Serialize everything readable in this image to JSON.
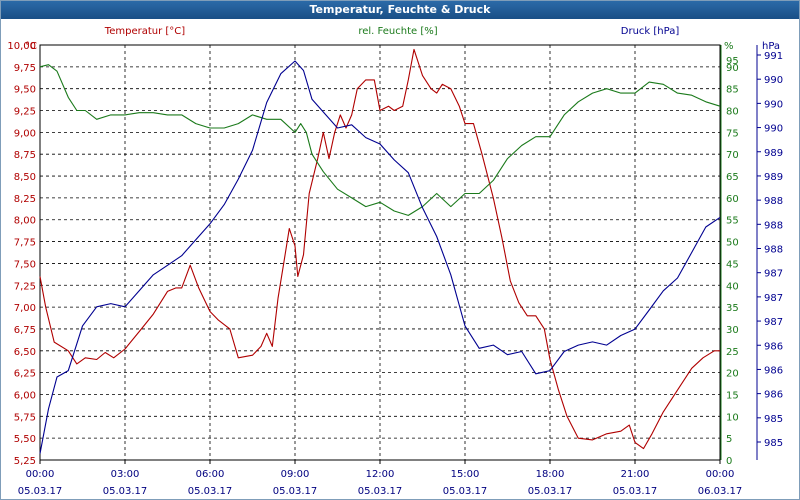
{
  "window": {
    "title": "Temperatur, Feuchte & Druck"
  },
  "colors": {
    "temperature": "#b00000",
    "humidity": "#1b7a1b",
    "pressure": "#000090",
    "grid": "#000000",
    "title_bg": "#1a4f86"
  },
  "chart_data": {
    "type": "line",
    "title": "Temperatur, Feuchte & Druck",
    "grid": true,
    "legend_placement": "top",
    "x": {
      "range": [
        "05.03.17 00:00",
        "06.03.17 00:00"
      ],
      "ticks": [
        {
          "time": "00:00",
          "date": "05.03.17"
        },
        {
          "time": "03:00",
          "date": "05.03.17"
        },
        {
          "time": "06:00",
          "date": "05.03.17"
        },
        {
          "time": "09:00",
          "date": "05.03.17"
        },
        {
          "time": "12:00",
          "date": "05.03.17"
        },
        {
          "time": "15:00",
          "date": "05.03.17"
        },
        {
          "time": "18:00",
          "date": "05.03.17"
        },
        {
          "time": "21:00",
          "date": "05.03.17"
        },
        {
          "time": "00:00",
          "date": "06.03.17"
        }
      ]
    },
    "axes": {
      "temperature": {
        "label": "Temperatur [°C]",
        "unit": "°C",
        "ylim": [
          5.25,
          10.0
        ],
        "tick_labels": [
          "10,00",
          "9,75",
          "9,50",
          "9,25",
          "9,00",
          "8,75",
          "8,50",
          "8,25",
          "8,00",
          "7,75",
          "7,50",
          "7,25",
          "7,00",
          "6,75",
          "6,50",
          "6,25",
          "6,00",
          "5,75",
          "5,50",
          "5,25"
        ]
      },
      "humidity": {
        "label": "rel. Feuchte [%]",
        "unit": "%",
        "ylim": [
          0,
          95
        ],
        "tick_labels": [
          "95",
          "90",
          "85",
          "80",
          "75",
          "70",
          "65",
          "60",
          "55",
          "50",
          "45",
          "40",
          "35",
          "30",
          "25",
          "20",
          "15",
          "10",
          "5",
          "0"
        ]
      },
      "pressure": {
        "label": "Druck [hPa]",
        "unit": "hPa",
        "ylim": [
          984.5,
          991.0
        ],
        "tick_labels": [
          "991",
          "990",
          "990",
          "990",
          "989",
          "989",
          "988",
          "988",
          "988",
          "987",
          "987",
          "987",
          "986",
          "986",
          "986",
          "985",
          "985"
        ]
      }
    },
    "series": [
      {
        "name": "Temperatur [°C]",
        "axis": "temperature",
        "points": [
          [
            0,
            7.35
          ],
          [
            0.2,
            7.0
          ],
          [
            0.5,
            6.6
          ],
          [
            1.0,
            6.5
          ],
          [
            1.3,
            6.35
          ],
          [
            1.6,
            6.42
          ],
          [
            2.0,
            6.4
          ],
          [
            2.3,
            6.48
          ],
          [
            2.6,
            6.42
          ],
          [
            3.0,
            6.52
          ],
          [
            3.5,
            6.72
          ],
          [
            4.0,
            6.92
          ],
          [
            4.5,
            7.18
          ],
          [
            4.8,
            7.22
          ],
          [
            5.0,
            7.22
          ],
          [
            5.3,
            7.48
          ],
          [
            5.6,
            7.22
          ],
          [
            6.0,
            6.95
          ],
          [
            6.3,
            6.85
          ],
          [
            6.7,
            6.75
          ],
          [
            7.0,
            6.42
          ],
          [
            7.5,
            6.45
          ],
          [
            7.8,
            6.55
          ],
          [
            8.0,
            6.7
          ],
          [
            8.2,
            6.55
          ],
          [
            8.4,
            7.1
          ],
          [
            8.6,
            7.5
          ],
          [
            8.8,
            7.9
          ],
          [
            9.0,
            7.7
          ],
          [
            9.1,
            7.35
          ],
          [
            9.3,
            7.6
          ],
          [
            9.5,
            8.3
          ],
          [
            9.8,
            8.7
          ],
          [
            10.0,
            9.0
          ],
          [
            10.2,
            8.7
          ],
          [
            10.4,
            9.0
          ],
          [
            10.6,
            9.2
          ],
          [
            10.8,
            9.05
          ],
          [
            11.0,
            9.2
          ],
          [
            11.2,
            9.5
          ],
          [
            11.5,
            9.6
          ],
          [
            11.8,
            9.6
          ],
          [
            12.0,
            9.25
          ],
          [
            12.3,
            9.3
          ],
          [
            12.5,
            9.25
          ],
          [
            12.8,
            9.3
          ],
          [
            13.0,
            9.6
          ],
          [
            13.2,
            9.95
          ],
          [
            13.5,
            9.65
          ],
          [
            13.8,
            9.5
          ],
          [
            14.0,
            9.45
          ],
          [
            14.2,
            9.55
          ],
          [
            14.5,
            9.5
          ],
          [
            14.8,
            9.3
          ],
          [
            15.0,
            9.1
          ],
          [
            15.3,
            9.1
          ],
          [
            15.6,
            8.75
          ],
          [
            16.0,
            8.25
          ],
          [
            16.3,
            7.8
          ],
          [
            16.6,
            7.3
          ],
          [
            16.9,
            7.05
          ],
          [
            17.2,
            6.9
          ],
          [
            17.5,
            6.9
          ],
          [
            17.8,
            6.75
          ],
          [
            18.0,
            6.4
          ],
          [
            18.3,
            6.05
          ],
          [
            18.6,
            5.75
          ],
          [
            19.0,
            5.5
          ],
          [
            19.5,
            5.48
          ],
          [
            20.0,
            5.55
          ],
          [
            20.5,
            5.58
          ],
          [
            20.8,
            5.65
          ],
          [
            21.0,
            5.45
          ],
          [
            21.3,
            5.38
          ],
          [
            21.6,
            5.55
          ],
          [
            22.0,
            5.8
          ],
          [
            22.5,
            6.05
          ],
          [
            23.0,
            6.3
          ],
          [
            23.4,
            6.42
          ],
          [
            23.8,
            6.5
          ],
          [
            24.0,
            6.5
          ]
        ]
      },
      {
        "name": "rel. Feuchte [%]",
        "axis": "humidity",
        "points": [
          [
            0,
            90
          ],
          [
            0.3,
            90.5
          ],
          [
            0.6,
            89
          ],
          [
            1.0,
            83
          ],
          [
            1.3,
            80
          ],
          [
            1.6,
            80
          ],
          [
            2.0,
            78
          ],
          [
            2.5,
            79
          ],
          [
            3.0,
            79
          ],
          [
            3.5,
            79.5
          ],
          [
            4.0,
            79.5
          ],
          [
            4.5,
            79
          ],
          [
            5.0,
            79
          ],
          [
            5.5,
            77
          ],
          [
            6.0,
            76
          ],
          [
            6.5,
            76
          ],
          [
            7.0,
            77
          ],
          [
            7.5,
            79
          ],
          [
            8.0,
            78
          ],
          [
            8.5,
            78
          ],
          [
            9.0,
            75
          ],
          [
            9.2,
            77
          ],
          [
            9.4,
            75
          ],
          [
            9.6,
            70
          ],
          [
            10.0,
            66
          ],
          [
            10.5,
            62
          ],
          [
            11.0,
            60
          ],
          [
            11.5,
            58
          ],
          [
            12.0,
            59
          ],
          [
            12.5,
            57
          ],
          [
            13.0,
            56
          ],
          [
            13.5,
            58
          ],
          [
            14.0,
            61
          ],
          [
            14.5,
            58
          ],
          [
            15.0,
            61
          ],
          [
            15.5,
            61
          ],
          [
            16.0,
            64
          ],
          [
            16.5,
            69
          ],
          [
            17.0,
            72
          ],
          [
            17.5,
            74
          ],
          [
            18.0,
            74
          ],
          [
            18.5,
            79
          ],
          [
            19.0,
            82
          ],
          [
            19.5,
            84
          ],
          [
            20.0,
            85
          ],
          [
            20.5,
            84
          ],
          [
            21.0,
            84
          ],
          [
            21.5,
            86.5
          ],
          [
            22.0,
            86
          ],
          [
            22.5,
            84
          ],
          [
            23.0,
            83.5
          ],
          [
            23.5,
            82
          ],
          [
            24.0,
            81
          ]
        ]
      },
      {
        "name": "Druck [hPa]",
        "axis": "pressure",
        "points": [
          [
            0,
            984.6
          ],
          [
            0.3,
            985.3
          ],
          [
            0.6,
            985.8
          ],
          [
            1.0,
            985.9
          ],
          [
            1.5,
            986.6
          ],
          [
            2.0,
            986.9
          ],
          [
            2.5,
            986.95
          ],
          [
            3.0,
            986.9
          ],
          [
            3.5,
            987.15
          ],
          [
            4.0,
            987.4
          ],
          [
            4.5,
            987.55
          ],
          [
            5.0,
            987.7
          ],
          [
            5.5,
            987.95
          ],
          [
            6.0,
            988.2
          ],
          [
            6.5,
            988.5
          ],
          [
            7.0,
            988.9
          ],
          [
            7.5,
            989.35
          ],
          [
            8.0,
            990.1
          ],
          [
            8.5,
            990.55
          ],
          [
            9.0,
            990.75
          ],
          [
            9.3,
            990.6
          ],
          [
            9.6,
            990.15
          ],
          [
            10.0,
            989.95
          ],
          [
            10.5,
            989.7
          ],
          [
            11.0,
            989.75
          ],
          [
            11.5,
            989.55
          ],
          [
            12.0,
            989.45
          ],
          [
            12.5,
            989.2
          ],
          [
            13.0,
            989.0
          ],
          [
            13.5,
            988.45
          ],
          [
            14.0,
            988.0
          ],
          [
            14.5,
            987.4
          ],
          [
            15.0,
            986.6
          ],
          [
            15.5,
            986.25
          ],
          [
            16.0,
            986.3
          ],
          [
            16.5,
            986.15
          ],
          [
            17.0,
            986.2
          ],
          [
            17.5,
            985.85
          ],
          [
            18.0,
            985.9
          ],
          [
            18.5,
            986.2
          ],
          [
            19.0,
            986.3
          ],
          [
            19.5,
            986.35
          ],
          [
            20.0,
            986.3
          ],
          [
            20.5,
            986.45
          ],
          [
            21.0,
            986.55
          ],
          [
            21.5,
            986.85
          ],
          [
            22.0,
            987.15
          ],
          [
            22.5,
            987.35
          ],
          [
            23.0,
            987.75
          ],
          [
            23.5,
            988.15
          ],
          [
            24.0,
            988.3
          ]
        ]
      }
    ]
  }
}
